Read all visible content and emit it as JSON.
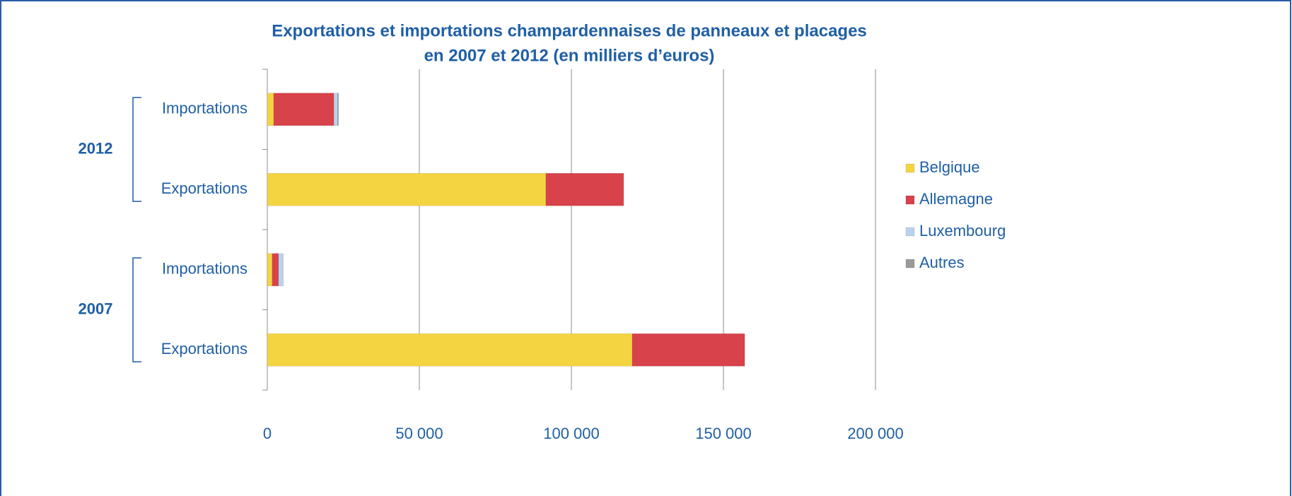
{
  "chart_data": {
    "type": "stacked_bar_horizontal",
    "title": [
      "Exportations et importations champardennaises de panneaux et placages",
      "en 2007 et 2012 (en milliers d’euros)"
    ],
    "categories": [
      "Importations",
      "Exportations",
      "Importations",
      "Exportations"
    ],
    "group_labels": [
      "2012",
      "2007"
    ],
    "series": [
      {
        "name": "Belgique",
        "color": "#f5d442",
        "values": [
          2100,
          91600,
          1600,
          120000
        ]
      },
      {
        "name": "Allemagne",
        "color": "#d8424b",
        "values": [
          19800,
          25600,
          2100,
          37000
        ]
      },
      {
        "name": "Luxembourg",
        "color": "#b9d3ee",
        "values": [
          1200,
          0,
          1600,
          0
        ]
      },
      {
        "name": "Autres",
        "color": "#9a9a9a",
        "values": [
          300,
          0,
          0,
          0
        ]
      }
    ],
    "xlim": [
      0,
      200000
    ],
    "xticks": [
      0,
      {
        "value": 50000,
        "label": "50 000"
      },
      {
        "value": 100000,
        "label": "100 000"
      },
      {
        "value": 150000,
        "label": "150 000"
      },
      {
        "value": 200000,
        "label": "200 000"
      }
    ],
    "grid": true,
    "legend": "right"
  }
}
